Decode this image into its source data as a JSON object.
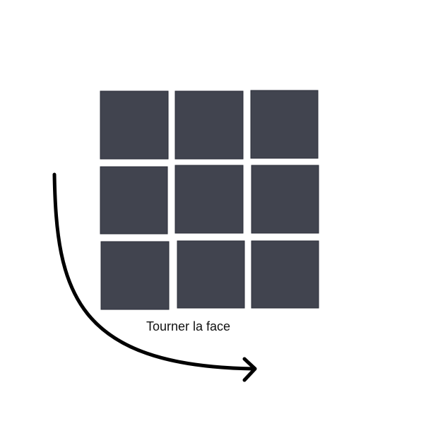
{
  "diagram": {
    "caption": "Tourner la face",
    "tile_color": "#41444f",
    "arrow_color": "#000000",
    "grid": {
      "rows": 3,
      "cols": 3
    },
    "arrow_icon": "curved-arrow-right"
  }
}
